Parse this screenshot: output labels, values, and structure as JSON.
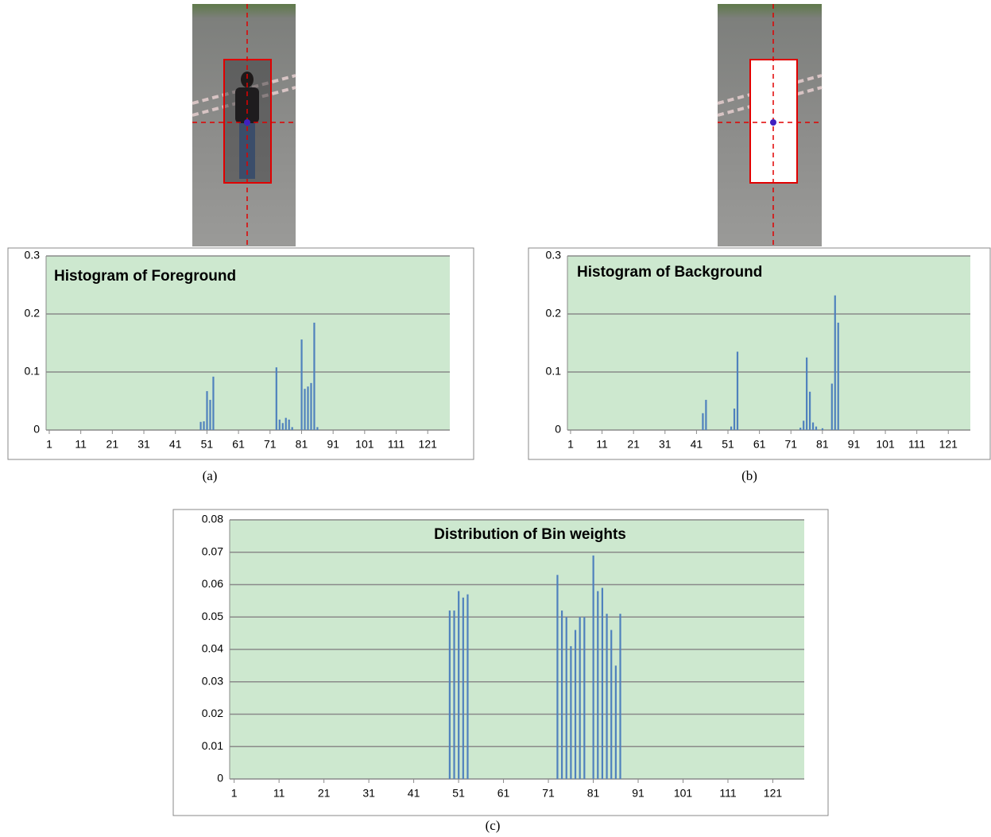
{
  "chart_data": [
    {
      "type": "bar",
      "title": "Histogram of Foreground",
      "caption": "(a)",
      "color": "#4f81bd",
      "grid": true,
      "x": [
        49,
        50,
        51,
        52,
        53,
        73,
        74,
        75,
        76,
        77,
        78,
        81,
        82,
        83,
        84,
        85,
        86
      ],
      "values": [
        0.014,
        0.015,
        0.067,
        0.052,
        0.092,
        0.108,
        0.018,
        0.012,
        0.021,
        0.018,
        0.005,
        0.156,
        0.071,
        0.075,
        0.081,
        0.185,
        0.005
      ],
      "xlim": [
        0,
        128
      ],
      "xticks": [
        1,
        11,
        21,
        31,
        41,
        51,
        61,
        71,
        81,
        91,
        101,
        111,
        121
      ],
      "ylim": [
        0,
        0.3
      ],
      "yticks": [
        0,
        0.1,
        0.2,
        0.3
      ]
    },
    {
      "type": "bar",
      "title": "Histogram of Background",
      "caption": "(b)",
      "color": "#4f81bd",
      "grid": true,
      "x": [
        43,
        44,
        52,
        53,
        54,
        74,
        75,
        76,
        77,
        78,
        79,
        81,
        84,
        85,
        86
      ],
      "values": [
        0.029,
        0.052,
        0.006,
        0.037,
        0.135,
        0.004,
        0.016,
        0.125,
        0.066,
        0.013,
        0.006,
        0.003,
        0.08,
        0.232,
        0.185
      ],
      "xlim": [
        0,
        128
      ],
      "xticks": [
        1,
        11,
        21,
        31,
        41,
        51,
        61,
        71,
        81,
        91,
        101,
        111,
        121
      ],
      "ylim": [
        0,
        0.3
      ],
      "yticks": [
        0,
        0.1,
        0.2,
        0.3
      ]
    },
    {
      "type": "bar",
      "title": "Distribution of Bin weights",
      "caption": "(c)",
      "color": "#4f81bd",
      "grid": true,
      "x": [
        49,
        50,
        51,
        52,
        53,
        73,
        74,
        75,
        76,
        77,
        78,
        79,
        81,
        82,
        83,
        84,
        85,
        86,
        87
      ],
      "values": [
        0.052,
        0.052,
        0.058,
        0.056,
        0.057,
        0.063,
        0.052,
        0.05,
        0.041,
        0.046,
        0.05,
        0.05,
        0.069,
        0.058,
        0.059,
        0.051,
        0.046,
        0.035,
        0.051
      ],
      "xlim": [
        0,
        128
      ],
      "xticks": [
        1,
        11,
        21,
        31,
        41,
        51,
        61,
        71,
        81,
        91,
        101,
        111,
        121
      ],
      "ylim": [
        0,
        0.08
      ],
      "yticks": [
        0,
        0.01,
        0.02,
        0.03,
        0.04,
        0.05,
        0.06,
        0.07,
        0.08
      ]
    }
  ]
}
